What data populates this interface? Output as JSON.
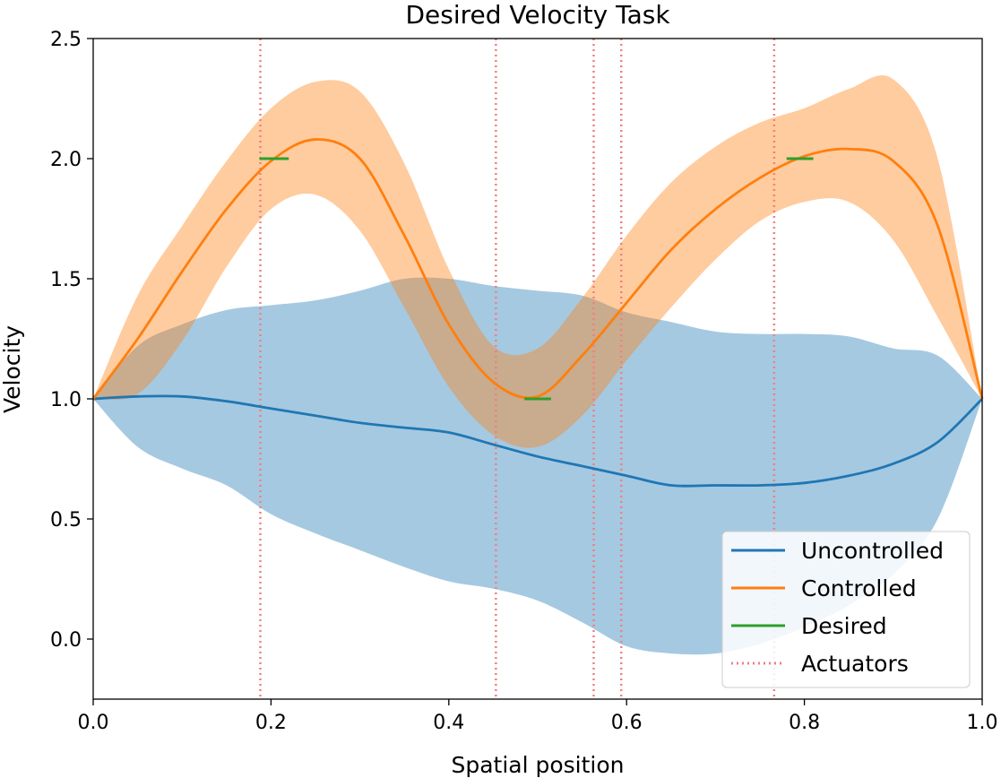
{
  "chart_data": {
    "type": "line",
    "title": "Desired Velocity Task",
    "xlabel": "Spatial position",
    "ylabel": "Velocity",
    "xlim": [
      0.0,
      1.0
    ],
    "ylim": [
      -0.25,
      2.5
    ],
    "xticks": [
      "0.0",
      "0.2",
      "0.4",
      "0.6",
      "0.8",
      "1.0"
    ],
    "yticks": [
      "0.0",
      "0.5",
      "1.0",
      "1.5",
      "2.0",
      "2.5"
    ],
    "legend_position": "lower-right",
    "colors": {
      "uncontrolled": "#1f77b4",
      "controlled": "#ff7f0e",
      "desired": "#2ca02c",
      "actuators": "#f08080"
    },
    "series": [
      {
        "name": "Uncontrolled",
        "x": [
          0.0,
          0.05,
          0.1,
          0.15,
          0.2,
          0.25,
          0.3,
          0.35,
          0.4,
          0.45,
          0.5,
          0.55,
          0.6,
          0.65,
          0.7,
          0.75,
          0.8,
          0.85,
          0.9,
          0.95,
          1.0
        ],
        "y": [
          1.0,
          1.01,
          1.01,
          0.99,
          0.96,
          0.93,
          0.9,
          0.88,
          0.86,
          0.81,
          0.76,
          0.72,
          0.68,
          0.64,
          0.64,
          0.64,
          0.65,
          0.68,
          0.73,
          0.82,
          1.0
        ],
        "band_low": [
          1.0,
          0.8,
          0.71,
          0.64,
          0.52,
          0.44,
          0.37,
          0.3,
          0.24,
          0.21,
          0.16,
          0.07,
          -0.03,
          -0.06,
          -0.06,
          -0.02,
          0.05,
          0.14,
          0.27,
          0.5,
          1.0
        ],
        "band_high": [
          1.0,
          1.22,
          1.31,
          1.37,
          1.39,
          1.41,
          1.45,
          1.5,
          1.5,
          1.47,
          1.45,
          1.43,
          1.36,
          1.32,
          1.28,
          1.27,
          1.27,
          1.26,
          1.21,
          1.18,
          1.0
        ]
      },
      {
        "name": "Controlled",
        "x": [
          0.0,
          0.05,
          0.1,
          0.15,
          0.2,
          0.25,
          0.3,
          0.35,
          0.4,
          0.45,
          0.5,
          0.55,
          0.6,
          0.65,
          0.7,
          0.75,
          0.8,
          0.85,
          0.9,
          0.95,
          1.0
        ],
        "y": [
          1.0,
          1.25,
          1.53,
          1.79,
          1.99,
          2.08,
          2.0,
          1.68,
          1.31,
          1.07,
          1.01,
          1.18,
          1.4,
          1.62,
          1.79,
          1.92,
          2.01,
          2.04,
          1.99,
          1.72,
          1.0
        ],
        "band_low": [
          1.0,
          1.02,
          1.24,
          1.55,
          1.79,
          1.85,
          1.7,
          1.38,
          1.05,
          0.85,
          0.8,
          0.93,
          1.16,
          1.38,
          1.58,
          1.74,
          1.82,
          1.82,
          1.66,
          1.34,
          1.0
        ],
        "band_high": [
          1.0,
          1.43,
          1.72,
          1.99,
          2.21,
          2.32,
          2.28,
          1.98,
          1.54,
          1.22,
          1.21,
          1.42,
          1.68,
          1.9,
          2.05,
          2.15,
          2.21,
          2.29,
          2.33,
          2.0,
          1.0
        ]
      }
    ],
    "desired_segments": [
      {
        "x_start": 0.187,
        "x_end": 0.22,
        "y": 2.0
      },
      {
        "x_start": 0.485,
        "x_end": 0.515,
        "y": 1.0
      },
      {
        "x_start": 0.78,
        "x_end": 0.81,
        "y": 2.0
      }
    ],
    "actuators": [
      0.188,
      0.453,
      0.563,
      0.594,
      0.766
    ],
    "legend": [
      "Uncontrolled",
      "Controlled",
      "Desired",
      "Actuators"
    ]
  }
}
